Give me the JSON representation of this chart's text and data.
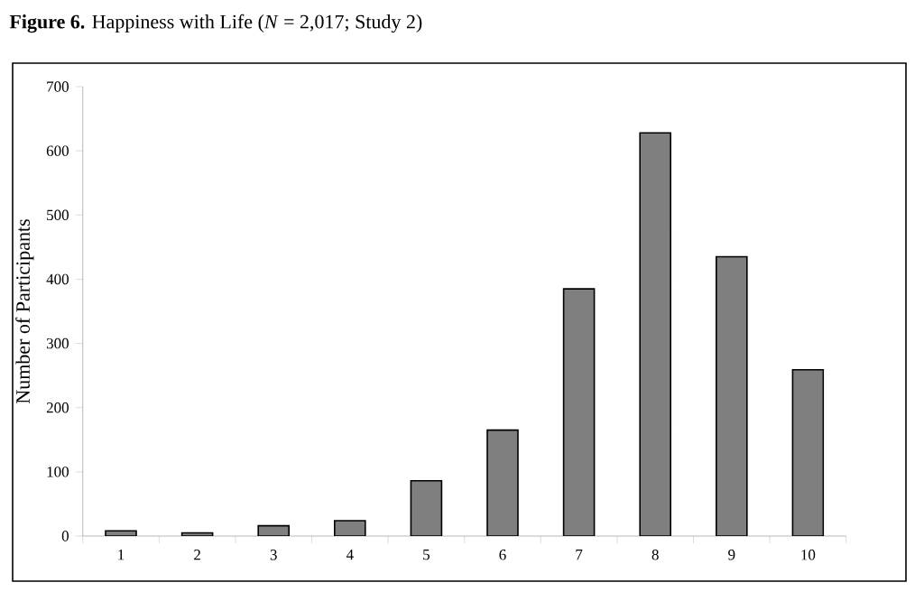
{
  "chart_data": {
    "type": "bar",
    "title": "**Figure 6.** Happiness with Life (*N* = 2,017; Study 2)",
    "ylabel": "Number of Participants",
    "categories": [
      "1",
      "2",
      "3",
      "4",
      "5",
      "6",
      "7",
      "8",
      "9",
      "10"
    ],
    "values": [
      8,
      5,
      16,
      24,
      86,
      165,
      385,
      628,
      435,
      259
    ],
    "color": "#7f7f7f",
    "ylim": [
      0,
      700
    ],
    "yticks": [
      0,
      100,
      200,
      300,
      400,
      500,
      600,
      700
    ]
  }
}
